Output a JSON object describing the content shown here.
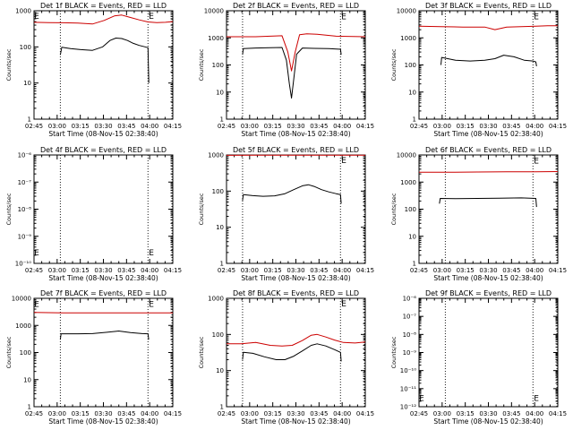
{
  "figure": {
    "background": "#ffffff",
    "axis_color": "#000000",
    "events_color": "#000000",
    "lld_color": "#cc0000"
  },
  "chart_data": [
    {
      "type": "line",
      "detector": "1f",
      "title": "Det 1f BLACK = Events, RED = LLD",
      "ylabel": "Counts/sec",
      "xlabel": "Start Time (08-Nov-15 02:38:40)",
      "scale": "log",
      "ylim": [
        1,
        1000
      ],
      "yticks": [
        "1",
        "10",
        "100",
        "1000"
      ],
      "xlim": [
        0,
        95
      ],
      "xticks": [
        "02:45",
        "03:00",
        "03:15",
        "03:30",
        "03:45",
        "04:00",
        "04:15"
      ],
      "vlines": [
        18,
        78,
        96
      ],
      "series": [
        {
          "name": "LLD",
          "color": "#cc0000",
          "x": [
            0,
            10,
            20,
            30,
            40,
            48,
            55,
            60,
            66,
            72,
            78,
            84,
            90,
            95
          ],
          "y": [
            480,
            470,
            465,
            455,
            430,
            540,
            720,
            760,
            650,
            560,
            490,
            470,
            480,
            500
          ]
        },
        {
          "name": "Events",
          "color": "#000000",
          "x": [
            18,
            19,
            25,
            32,
            40,
            47,
            52,
            56,
            60,
            64,
            68,
            72,
            76,
            78,
            78.6
          ],
          "y": [
            60,
            98,
            90,
            84,
            80,
            100,
            150,
            175,
            170,
            150,
            125,
            110,
            100,
            95,
            10
          ]
        }
      ],
      "markers": [
        {
          "label": "E",
          "x": 78,
          "y": 720
        },
        {
          "label": "E",
          "x": -0.5,
          "y": 720
        }
      ]
    },
    {
      "type": "line",
      "detector": "2f",
      "title": "Det 2f BLACK = Events, RED = LLD",
      "ylabel": "Counts/sec",
      "xlabel": "Start Time (08-Nov-15 02:38:40)",
      "scale": "log",
      "ylim": [
        1,
        10000
      ],
      "yticks": [
        "1",
        "10",
        "100",
        "1000",
        "10000"
      ],
      "xlim": [
        0,
        95
      ],
      "xticks": [
        "02:45",
        "03:00",
        "03:15",
        "03:30",
        "03:45",
        "04:00",
        "04:15"
      ],
      "vlines": [
        11,
        78,
        96
      ],
      "series": [
        {
          "name": "LLD",
          "color": "#cc0000",
          "x": [
            0,
            20,
            30,
            38,
            42,
            44.5,
            47,
            50,
            55,
            62,
            75,
            95
          ],
          "y": [
            1100,
            1100,
            1150,
            1200,
            300,
            60,
            300,
            1300,
            1400,
            1350,
            1150,
            1100
          ]
        },
        {
          "name": "Events",
          "color": "#000000",
          "x": [
            11,
            11.5,
            20,
            30,
            38,
            41,
            43,
            44.5,
            46,
            48,
            52,
            60,
            70,
            78,
            78.5
          ],
          "y": [
            240,
            400,
            420,
            430,
            440,
            150,
            20,
            6,
            30,
            250,
            420,
            410,
            400,
            380,
            240
          ]
        }
      ],
      "markers": [
        {
          "label": "E",
          "x": 78,
          "y": 6000
        }
      ]
    },
    {
      "type": "line",
      "detector": "3f",
      "title": "Det 3f BLACK = Events, RED = LLD",
      "ylabel": "Counts/sec",
      "xlabel": "Start Time (08-Nov-15 02:38:40)",
      "scale": "log",
      "ylim": [
        1,
        10000
      ],
      "yticks": [
        "1",
        "10",
        "100",
        "1000",
        "10000"
      ],
      "xlim": [
        0,
        95
      ],
      "xticks": [
        "02:45",
        "03:00",
        "03:15",
        "03:30",
        "03:45",
        "04:00",
        "04:15"
      ],
      "vlines": [
        18,
        78,
        96
      ],
      "series": [
        {
          "name": "LLD",
          "color": "#cc0000",
          "x": [
            0,
            15,
            30,
            45,
            52,
            60,
            70,
            80,
            88,
            95
          ],
          "y": [
            2700,
            2600,
            2500,
            2500,
            2000,
            2500,
            2600,
            2700,
            2800,
            2800
          ]
        },
        {
          "name": "Events",
          "color": "#000000",
          "x": [
            15,
            15.5,
            25,
            35,
            45,
            52,
            58,
            65,
            72,
            78,
            80,
            80.5
          ],
          "y": [
            100,
            190,
            150,
            140,
            150,
            170,
            230,
            200,
            150,
            140,
            130,
            90
          ]
        }
      ],
      "markers": [
        {
          "label": "E",
          "x": 78,
          "y": 6000
        }
      ]
    },
    {
      "type": "line",
      "detector": "4f",
      "title": "Det 4f BLACK = Events, RED = LLD",
      "ylabel": "Counts/sec",
      "xlabel": "Start Time (08-Nov-15 02:38:40)",
      "scale": "log",
      "ylim": [
        1e-10,
        1e-06
      ],
      "yticks": [
        "10⁻¹⁰",
        "10⁻⁹",
        "10⁻⁸",
        "10⁻⁷",
        "10⁻⁶"
      ],
      "xlim": [
        0,
        95
      ],
      "xticks": [
        "02:45",
        "03:00",
        "03:15",
        "03:30",
        "03:45",
        "04:00",
        "04:15"
      ],
      "vlines": [
        18,
        78,
        96
      ],
      "series": [],
      "markers": [
        {
          "label": "E",
          "x": 78,
          "y": 2.5e-10
        },
        {
          "label": "E",
          "x": -0.5,
          "y": 2.5e-10
        }
      ]
    },
    {
      "type": "line",
      "detector": "5f",
      "title": "Det 5f BLACK = Events, RED = LLD",
      "ylabel": "Counts/sec",
      "xlabel": "Start Time (08-Nov-15 02:38:40)",
      "scale": "log",
      "ylim": [
        1,
        1000
      ],
      "yticks": [
        "1",
        "10",
        "100",
        "1000"
      ],
      "xlim": [
        0,
        95
      ],
      "xticks": [
        "02:45",
        "03:00",
        "03:15",
        "03:30",
        "03:45",
        "04:00",
        "04:15"
      ],
      "vlines": [
        11,
        78,
        96
      ],
      "series": [
        {
          "name": "LLD",
          "color": "#cc0000",
          "x": [
            0,
            20,
            40,
            60,
            80,
            95
          ],
          "y": [
            980,
            985,
            990,
            990,
            990,
            985
          ]
        },
        {
          "name": "Events",
          "color": "#000000",
          "x": [
            11,
            11.5,
            18,
            25,
            33,
            40,
            46,
            52,
            56,
            60,
            65,
            70,
            75,
            78,
            78.5
          ],
          "y": [
            55,
            80,
            75,
            72,
            74,
            85,
            110,
            140,
            150,
            135,
            110,
            95,
            85,
            80,
            45
          ]
        }
      ],
      "markers": [
        {
          "label": "E",
          "x": 78,
          "y": 720
        }
      ]
    },
    {
      "type": "line",
      "detector": "6f",
      "title": "Det 6f BLACK = Events, RED = LLD",
      "ylabel": "Counts/sec",
      "xlabel": "Start Time (08-Nov-15 02:38:40)",
      "scale": "log",
      "ylim": [
        1,
        10000
      ],
      "yticks": [
        "1",
        "10",
        "100",
        "1000",
        "10000"
      ],
      "xlim": [
        0,
        95
      ],
      "xticks": [
        "02:45",
        "03:00",
        "03:15",
        "03:30",
        "03:45",
        "04:00",
        "04:15"
      ],
      "vlines": [
        18,
        78,
        96
      ],
      "series": [
        {
          "name": "LLD",
          "color": "#cc0000",
          "x": [
            0,
            20,
            40,
            60,
            80,
            95
          ],
          "y": [
            2300,
            2300,
            2350,
            2400,
            2400,
            2450
          ]
        },
        {
          "name": "Events",
          "color": "#000000",
          "x": [
            14,
            14.5,
            25,
            40,
            55,
            70,
            80,
            80.5
          ],
          "y": [
            160,
            250,
            245,
            250,
            255,
            260,
            250,
            120
          ]
        }
      ],
      "markers": [
        {
          "label": "E",
          "x": 78,
          "y": 6000
        }
      ]
    },
    {
      "type": "line",
      "detector": "7f",
      "title": "Det 7f BLACK = Events, RED = LLD",
      "ylabel": "Counts/sec",
      "xlabel": "Start Time (08-Nov-15 02:38:40)",
      "scale": "log",
      "ylim": [
        1,
        10000
      ],
      "yticks": [
        "1",
        "10",
        "100",
        "1000",
        "10000"
      ],
      "xlim": [
        0,
        95
      ],
      "xticks": [
        "02:45",
        "03:00",
        "03:15",
        "03:30",
        "03:45",
        "04:00",
        "04:15"
      ],
      "vlines": [
        18,
        78,
        96
      ],
      "series": [
        {
          "name": "LLD",
          "color": "#cc0000",
          "x": [
            0,
            20,
            40,
            60,
            80,
            95
          ],
          "y": [
            3000,
            2900,
            2900,
            2900,
            2900,
            2900
          ]
        },
        {
          "name": "Events",
          "color": "#000000",
          "x": [
            18,
            18.5,
            30,
            40,
            50,
            58,
            66,
            74,
            78,
            78.5
          ],
          "y": [
            300,
            490,
            490,
            500,
            560,
            620,
            540,
            500,
            490,
            300
          ]
        }
      ],
      "markers": [
        {
          "label": "E",
          "x": 78,
          "y": 6000
        },
        {
          "label": "E",
          "x": -0.5,
          "y": 6000
        }
      ]
    },
    {
      "type": "line",
      "detector": "8f",
      "title": "Det 8f BLACK = Events, RED = LLD",
      "ylabel": "Counts/sec",
      "xlabel": "Start Time (08-Nov-15 02:38:40)",
      "scale": "log",
      "ylim": [
        1,
        1000
      ],
      "yticks": [
        "1",
        "10",
        "100",
        "1000"
      ],
      "xlim": [
        0,
        95
      ],
      "xticks": [
        "02:45",
        "03:00",
        "03:15",
        "03:30",
        "03:45",
        "04:00",
        "04:15"
      ],
      "vlines": [
        11,
        78,
        96
      ],
      "series": [
        {
          "name": "LLD",
          "color": "#cc0000",
          "x": [
            0,
            10,
            20,
            30,
            38,
            45,
            52,
            58,
            62,
            68,
            74,
            80,
            88,
            95
          ],
          "y": [
            55,
            55,
            60,
            50,
            48,
            50,
            68,
            95,
            100,
            85,
            70,
            60,
            58,
            62
          ]
        },
        {
          "name": "Events",
          "color": "#000000",
          "x": [
            11,
            11.5,
            18,
            26,
            34,
            40,
            46,
            52,
            58,
            62,
            68,
            74,
            78,
            78.5
          ],
          "y": [
            20,
            32,
            30,
            24,
            20,
            20,
            25,
            35,
            50,
            55,
            48,
            38,
            32,
            18
          ]
        }
      ],
      "markers": [
        {
          "label": "E",
          "x": 78,
          "y": 720
        }
      ]
    },
    {
      "type": "line",
      "detector": "9f",
      "title": "Det 9f BLACK = Events, RED = LLD",
      "ylabel": "Counts/sec",
      "xlabel": "Start Time (08-Nov-15 02:38:40)",
      "scale": "log",
      "ylim": [
        1e-12,
        1e-06
      ],
      "yticks": [
        "10⁻¹²",
        "10⁻¹¹",
        "10⁻¹⁰",
        "10⁻⁹",
        "10⁻⁸",
        "10⁻⁷",
        "10⁻⁶"
      ],
      "xlim": [
        0,
        95
      ],
      "xticks": [
        "02:45",
        "03:00",
        "03:15",
        "03:30",
        "03:45",
        "04:00",
        "04:15"
      ],
      "vlines": [
        18,
        78,
        96
      ],
      "series": [],
      "markers": [
        {
          "label": "E",
          "x": 78,
          "y": 3e-12
        },
        {
          "label": "E",
          "x": -0.5,
          "y": 3e-12
        }
      ]
    }
  ]
}
